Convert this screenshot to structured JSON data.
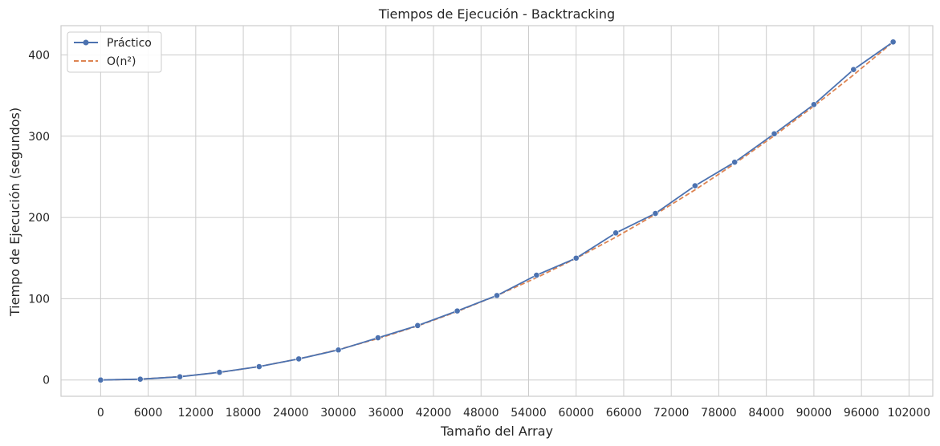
{
  "chart_data": {
    "type": "line",
    "title": "Tiempos de Ejecución - Backtracking",
    "xlabel": "Tamaño del Array",
    "ylabel": "Tiempo de Ejecución (segundos)",
    "xlim": [
      -5000,
      105000
    ],
    "ylim": [
      -20,
      436
    ],
    "xticks": [
      0,
      6000,
      12000,
      18000,
      24000,
      30000,
      36000,
      42000,
      48000,
      54000,
      60000,
      66000,
      72000,
      78000,
      84000,
      90000,
      96000,
      102000
    ],
    "yticks": [
      0,
      100,
      200,
      300,
      400
    ],
    "grid": true,
    "legend_position": "top-left",
    "series": [
      {
        "name": "Práctico",
        "style": "solid",
        "marker": "circle",
        "color": "#4c72b0",
        "x": [
          0,
          5000,
          10000,
          15000,
          20000,
          25000,
          30000,
          35000,
          40000,
          45000,
          50000,
          55000,
          60000,
          65000,
          70000,
          75000,
          80000,
          85000,
          90000,
          95000,
          100000
        ],
        "y": [
          0,
          1,
          4,
          9.5,
          16.5,
          26,
          37,
          52,
          67,
          85,
          104,
          129,
          150,
          181,
          205,
          239,
          268,
          303,
          339,
          382,
          416
        ]
      },
      {
        "name": "O(n²)",
        "style": "dashed",
        "marker": "none",
        "color": "#dd8452",
        "x": [
          0,
          5000,
          10000,
          15000,
          20000,
          25000,
          30000,
          35000,
          40000,
          45000,
          50000,
          55000,
          60000,
          65000,
          70000,
          75000,
          80000,
          85000,
          90000,
          95000,
          100000
        ],
        "y": [
          0,
          1.04,
          4.16,
          9.36,
          16.64,
          26,
          37.44,
          50.96,
          66.56,
          84.24,
          104,
          125.84,
          149.76,
          175.76,
          203.84,
          234,
          266.24,
          300.56,
          336.96,
          375.44,
          416
        ]
      }
    ]
  }
}
